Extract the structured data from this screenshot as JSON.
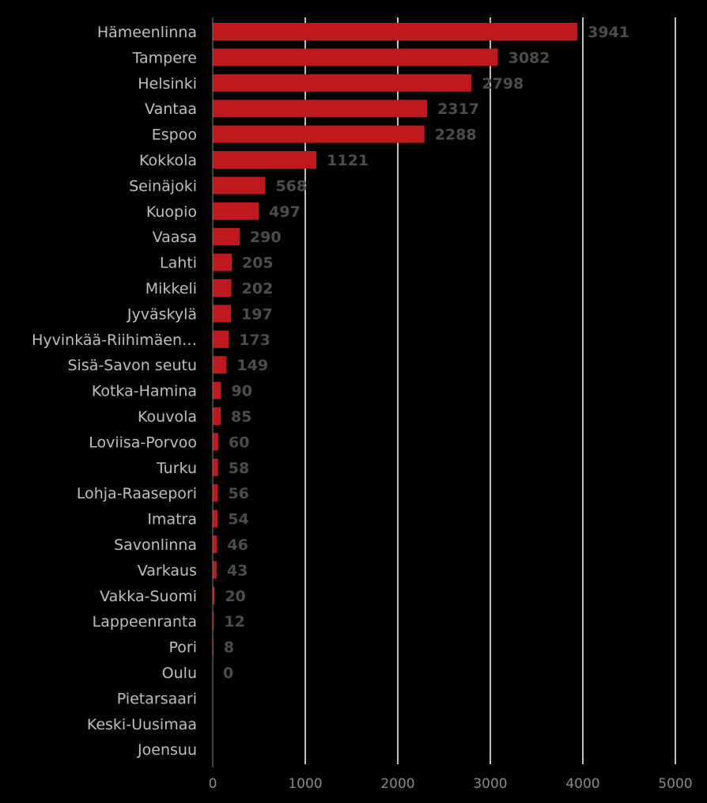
{
  "colors": {
    "background": "#000000",
    "bar": "#c0181f",
    "category_text": "#bfbfbf",
    "value_text": "#4d4d4d",
    "tick_text": "#8a8a8a",
    "grid": "#ffffff"
  },
  "chart_data": {
    "type": "bar",
    "orientation": "horizontal",
    "title": "",
    "xlabel": "",
    "ylabel": "",
    "xlim": [
      0,
      5000
    ],
    "grid": true,
    "legend": "none",
    "x_ticks": [
      "0",
      "1000",
      "2000",
      "3000",
      "4000",
      "5000"
    ],
    "x_tick_values": [
      0,
      1000,
      2000,
      3000,
      4000,
      5000
    ],
    "categories": [
      "Hämeenlinna",
      "Tampere",
      "Helsinki",
      "Vantaa",
      "Espoo",
      "Kokkola",
      "Seinäjoki",
      "Kuopio",
      "Vaasa",
      "Lahti",
      "Mikkeli",
      "Jyväskylä",
      "Hyvinkää-Riihimäen…",
      "Sisä-Savon seutu",
      "Kotka-Hamina",
      "Kouvola",
      "Loviisa-Porvoo",
      "Turku",
      "Lohja-Raasepori",
      "Imatra",
      "Savonlinna",
      "Varkaus",
      "Vakka-Suomi",
      "Lappeenranta",
      "Pori",
      "Oulu",
      "Pietarsaari",
      "Keski-Uusimaa",
      "Joensuu"
    ],
    "values": [
      3941,
      3082,
      2798,
      2317,
      2288,
      1121,
      568,
      497,
      290,
      205,
      202,
      197,
      173,
      149,
      90,
      85,
      60,
      58,
      56,
      54,
      46,
      43,
      20,
      12,
      8,
      0,
      null,
      null,
      null
    ],
    "value_labels": [
      "3941",
      "3082",
      "2798",
      "2317",
      "2288",
      "1121",
      "568",
      "497",
      "290",
      "205",
      "202",
      "197",
      "173",
      "149",
      "90",
      "85",
      "60",
      "58",
      "56",
      "54",
      "46",
      "43",
      "20",
      "12",
      "8",
      "0",
      "",
      "",
      ""
    ]
  }
}
